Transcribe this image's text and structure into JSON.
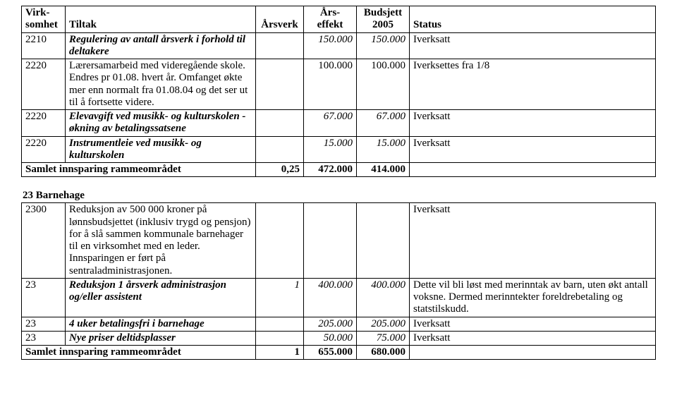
{
  "header": {
    "virksomhet": "Virk-somhet",
    "tiltak": "Tiltak",
    "arsverk": "Årsverk",
    "arseffekt": "Års-effekt",
    "budsjett": "Budsjett 2005",
    "status": "Status"
  },
  "top": {
    "rows": [
      {
        "code": "2210",
        "tiltak": "Regulering av antall årsverk i forhold til deltakere",
        "italic": true,
        "arsverk": "",
        "arseff": "150.000",
        "budsjett": "150.000",
        "status": "Iverksatt"
      },
      {
        "code": "2220",
        "tiltak": "Lærersamarbeid med videregående skole. Endres pr 01.08. hvert år. Omfanget økte mer enn normalt fra 01.08.04 og det ser ut til å fortsette videre.",
        "italic": false,
        "arsverk": "",
        "arseff": "100.000",
        "budsjett": "100.000",
        "status": "Iverksettes fra 1/8"
      },
      {
        "code": "2220",
        "tiltak": "Elevavgift ved musikk- og kulturskolen - økning av betalingssatsene",
        "italic": true,
        "arsverk": "",
        "arseff": "67.000",
        "budsjett": "67.000",
        "status": "Iverksatt"
      },
      {
        "code": "2220",
        "tiltak": "Instrumentleie ved musikk- og kulturskolen",
        "italic": true,
        "arsverk": "",
        "arseff": "15.000",
        "budsjett": "15.000",
        "status": "Iverksatt"
      }
    ],
    "sum": {
      "label": "Samlet innsparing rammeområdet",
      "arsverk": "0,25",
      "arseff": "472.000",
      "budsjett": "414.000",
      "status": ""
    }
  },
  "section2": {
    "heading": "23 Barnehage",
    "rows": [
      {
        "code": "2300",
        "tiltak": "Reduksjon av 500 000 kroner på lønnsbudsjettet (inklusiv trygd og pensjon) for å slå sammen kommunale barnehager til en virksomhet med en leder. Innsparingen er ført på sentraladministrasjonen.",
        "italic": false,
        "arsverk": "",
        "arseff": "",
        "budsjett": "",
        "status": "Iverksatt"
      },
      {
        "code": "23",
        "tiltak": "Reduksjon 1 årsverk administrasjon og/eller assistent",
        "italic": true,
        "arsverk": "1",
        "arsverk_italic": true,
        "arseff": "400.000",
        "budsjett": "400.000",
        "status": "Dette vil bli løst med merinntak av barn, uten økt antall voksne. Dermed merinntekter foreldrebetaling og statstilskudd."
      },
      {
        "code": "23",
        "tiltak": "4 uker betalingsfri i barnehage",
        "italic": true,
        "arsverk": "",
        "arseff": "205.000",
        "budsjett": "205.000",
        "status": "Iverksatt"
      },
      {
        "code": "23",
        "tiltak": "Nye priser deltidsplasser",
        "italic": true,
        "arsverk": "",
        "arseff": "50.000",
        "budsjett": "75.000",
        "status": "Iverksatt"
      }
    ],
    "sum": {
      "label": "Samlet innsparing rammeområdet",
      "arsverk": "1",
      "arseff": "655.000",
      "budsjett": "680.000",
      "status": ""
    }
  }
}
